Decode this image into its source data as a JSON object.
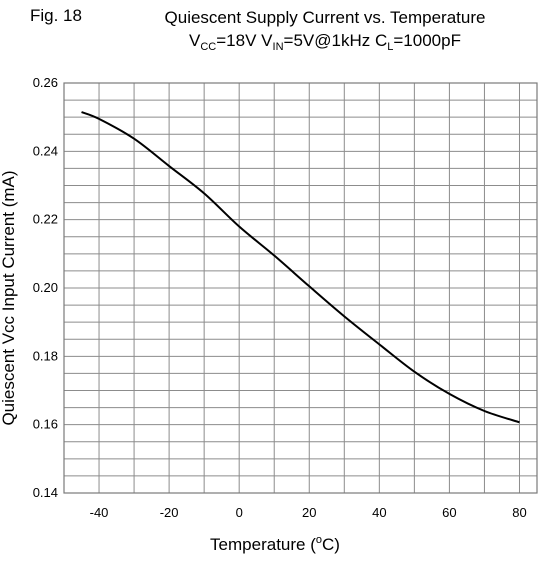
{
  "figure": {
    "label": "Fig. 18",
    "title": "Quiescent Supply Current vs. Temperature",
    "cond": {
      "vcc_prefix": "V",
      "vcc_sub": "CC",
      "vcc_val": "=18V",
      "vin_prefix": "V",
      "vin_sub": "IN",
      "vin_val": "=5V@1kHz",
      "cl_prefix": "C",
      "cl_sub": "L",
      "cl_val": "=1000pF"
    }
  },
  "chart_data": {
    "type": "line",
    "title": "Quiescent Supply Current vs. Temperature",
    "xlabel_prefix": "Temperature (",
    "xlabel_sup": "o",
    "xlabel_suffix": "C)",
    "ylabel": "Quiescent Vcc Input Current (mA)",
    "xlim": [
      -50,
      85
    ],
    "ylim": [
      0.14,
      0.26
    ],
    "xticks": [
      -40,
      -20,
      0,
      20,
      40,
      60,
      80
    ],
    "yticks": [
      "0.14",
      "0.16",
      "0.18",
      "0.20",
      "0.22",
      "0.24",
      "0.26"
    ],
    "grid": true,
    "series": [
      {
        "x": [
          -45,
          -40,
          -30,
          -20,
          -10,
          0,
          10,
          20,
          30,
          40,
          50,
          60,
          70,
          80
        ],
        "y": [
          0.2515,
          0.2495,
          0.2437,
          0.2357,
          0.2277,
          0.218,
          0.2095,
          0.2005,
          0.1917,
          0.1835,
          0.1755,
          0.169,
          0.164,
          0.1607
        ]
      }
    ],
    "line_color": "#000000"
  }
}
